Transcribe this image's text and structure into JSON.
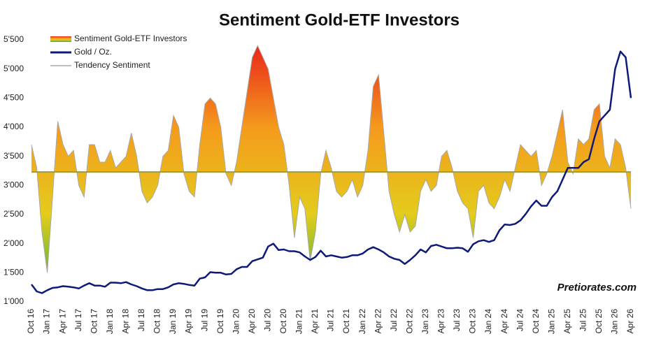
{
  "chart_data": {
    "type": "area-line",
    "title": "Sentiment Gold-ETF Investors",
    "source": "Pretiorates.com",
    "categories": [
      "Oct 16",
      null,
      null,
      "Jan 17",
      null,
      null,
      "Apr 17",
      null,
      null,
      "Jul 17",
      null,
      null,
      "Oct 17",
      null,
      null,
      "Jan 18",
      null,
      null,
      "Apr 18",
      null,
      null,
      "Jul 18",
      null,
      null,
      "Oct 18",
      null,
      null,
      "Jan 19",
      null,
      null,
      "Apr 19",
      null,
      null,
      "Jul 19",
      null,
      null,
      "Oct 19",
      null,
      null,
      "Jan 20",
      null,
      null,
      "Apr 20",
      null,
      null,
      "Jul 20",
      null,
      null,
      "Oct 20",
      null,
      null,
      "Jan 21",
      null,
      null,
      "Apr 21",
      null,
      null,
      "Jul 21",
      null,
      null,
      "Oct 21",
      null,
      null,
      "Jan 22",
      null,
      null,
      "Apr 22",
      null,
      null,
      "Jul 22",
      null,
      null,
      "Oct 22",
      null,
      null,
      "Jan 23",
      null,
      null,
      "Apr 23",
      null,
      null,
      "Jul 23",
      null,
      null,
      "Oct 23",
      null,
      null,
      "Jan 24",
      null,
      null,
      "Apr 24",
      null,
      null,
      "Jul 24",
      null,
      null,
      "Oct 24",
      null,
      null,
      "Jan 25",
      null,
      null,
      "Apr 25",
      null,
      null,
      "Jul 25",
      null,
      null,
      "Oct 25",
      null,
      null,
      "Jan 26",
      null,
      null,
      "Apr 26"
    ],
    "series": [
      {
        "name": "Sentiment Gold-ETF Investors",
        "colors": [
          "#e8201a",
          "#f59a1c",
          "#e3cc1c",
          "#2fae3c"
        ],
        "outline_name": "Tendency Sentiment",
        "outline_color": "#a8a8a8",
        "values": [
          3700,
          3300,
          2200,
          1500,
          2800,
          4100,
          3700,
          3500,
          3600,
          3000,
          2800,
          3700,
          3700,
          3400,
          3400,
          3600,
          3300,
          3400,
          3500,
          3900,
          3500,
          2900,
          2700,
          2800,
          3000,
          3500,
          3600,
          4200,
          4000,
          3200,
          2900,
          2800,
          3700,
          4400,
          4500,
          4400,
          4000,
          3200,
          3000,
          3400,
          4000,
          4600,
          5200,
          5400,
          5200,
          5000,
          4500,
          4000,
          3700,
          3000,
          2100,
          2800,
          2600,
          1700,
          2200,
          3200,
          3600,
          3300,
          2900,
          2800,
          2900,
          3100,
          2800,
          3000,
          3600,
          4700,
          4900,
          3900,
          2900,
          2500,
          2200,
          2500,
          2200,
          2300,
          2900,
          3100,
          2900,
          3000,
          3500,
          3600,
          3300,
          2900,
          2700,
          2600,
          2100,
          2900,
          3000,
          2700,
          2600,
          2800,
          3100,
          2900,
          3300,
          3700,
          3600,
          3500,
          3600,
          3000,
          3200,
          3500,
          3900,
          4300,
          3400,
          3200,
          3800,
          3700,
          3800,
          4300,
          4400,
          3500,
          3300,
          3800,
          3700,
          3300,
          2600
        ]
      },
      {
        "name": "Gold / Oz.",
        "color": "#0d1a78",
        "values": [
          1300,
          1180,
          1150,
          1200,
          1240,
          1250,
          1270,
          1260,
          1250,
          1230,
          1280,
          1320,
          1280,
          1280,
          1260,
          1330,
          1330,
          1320,
          1340,
          1300,
          1270,
          1230,
          1200,
          1200,
          1220,
          1220,
          1250,
          1300,
          1320,
          1310,
          1290,
          1280,
          1400,
          1420,
          1510,
          1500,
          1500,
          1470,
          1480,
          1560,
          1600,
          1600,
          1700,
          1730,
          1760,
          1950,
          2000,
          1890,
          1900,
          1870,
          1870,
          1850,
          1780,
          1720,
          1770,
          1880,
          1780,
          1800,
          1780,
          1760,
          1770,
          1800,
          1800,
          1830,
          1900,
          1940,
          1900,
          1850,
          1780,
          1740,
          1720,
          1650,
          1720,
          1800,
          1900,
          1850,
          1960,
          1980,
          1950,
          1920,
          1920,
          1930,
          1920,
          1860,
          1990,
          2040,
          2060,
          2030,
          2060,
          2230,
          2330,
          2320,
          2340,
          2400,
          2510,
          2640,
          2740,
          2650,
          2650,
          2800,
          2900,
          3100,
          3300,
          3300,
          3300,
          3400,
          3450,
          3800,
          4100,
          4200,
          4300,
          5000,
          5300,
          5200,
          4500
        ]
      }
    ],
    "reference_line": 3230,
    "reference_color": "#9c9c3a",
    "ylim": [
      1000,
      5500
    ],
    "yticks": [
      {
        "value": 1000,
        "label": "1'000"
      },
      {
        "value": 1500,
        "label": "1'500"
      },
      {
        "value": 2000,
        "label": "2'000"
      },
      {
        "value": 2500,
        "label": "2'500"
      },
      {
        "value": 3000,
        "label": "3'000"
      },
      {
        "value": 3500,
        "label": "3'500"
      },
      {
        "value": 4000,
        "label": "4'000"
      },
      {
        "value": 4500,
        "label": "4'500"
      },
      {
        "value": 5000,
        "label": "5'000"
      },
      {
        "value": 5500,
        "label": "5'500"
      }
    ],
    "grid": false,
    "legend": "top-left"
  }
}
